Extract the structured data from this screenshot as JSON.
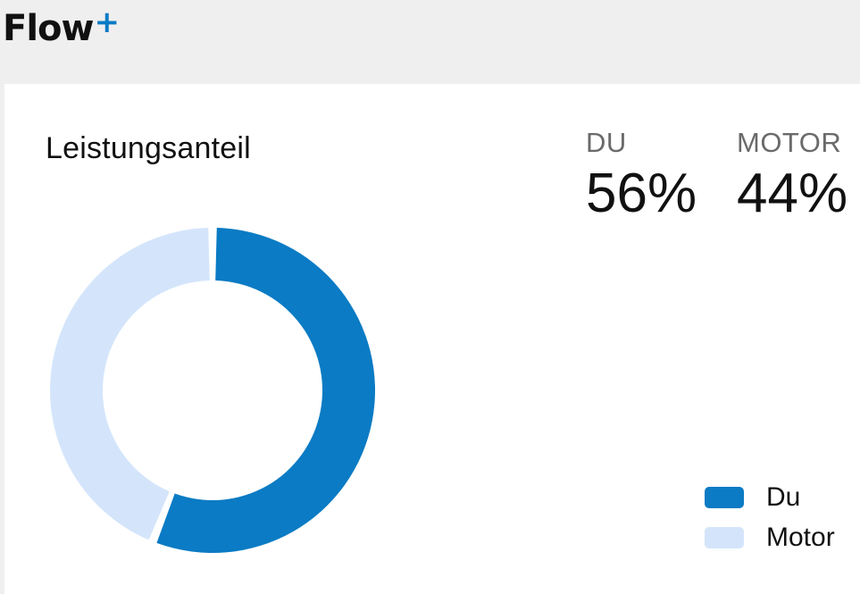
{
  "header": {
    "brand_name": "Flow",
    "brand_plus": "+"
  },
  "card": {
    "title": "Leistungsanteil",
    "stats": [
      {
        "label": "DU",
        "value": "56%"
      },
      {
        "label": "MOTOR",
        "value": "44%"
      }
    ]
  },
  "colors": {
    "du": "#0a7bc4",
    "motor": "#d4e5fb",
    "brand_accent": "#0a7bc4"
  },
  "chart_data": {
    "type": "pie",
    "categories": [
      "Du",
      "Motor"
    ],
    "values": [
      56,
      44
    ],
    "legend_position": "bottom-right"
  }
}
